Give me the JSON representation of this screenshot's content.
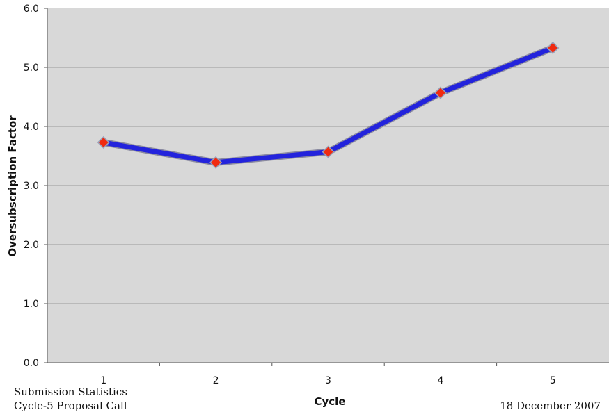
{
  "chart_data": {
    "type": "line",
    "title": "",
    "xlabel": "Cycle",
    "ylabel": "Oversubscription Factor",
    "categories": [
      "1",
      "2",
      "3",
      "4",
      "5"
    ],
    "values": [
      3.73,
      3.39,
      3.57,
      4.57,
      5.33
    ],
    "ylim": [
      0.0,
      6.0
    ],
    "yticks": [
      "0.0",
      "1.0",
      "2.0",
      "3.0",
      "4.0",
      "5.0",
      "6.0"
    ],
    "grid": true,
    "legend": "none",
    "colors": {
      "line": "#2323dc",
      "marker": "#f02a10",
      "plot_bg": "#d8d8d8",
      "grid": "#9a9a9a"
    }
  },
  "footer": {
    "left_line1": "Submission Statistics",
    "left_line2": "Cycle-5 Proposal Call",
    "right": "18 December 2007"
  }
}
